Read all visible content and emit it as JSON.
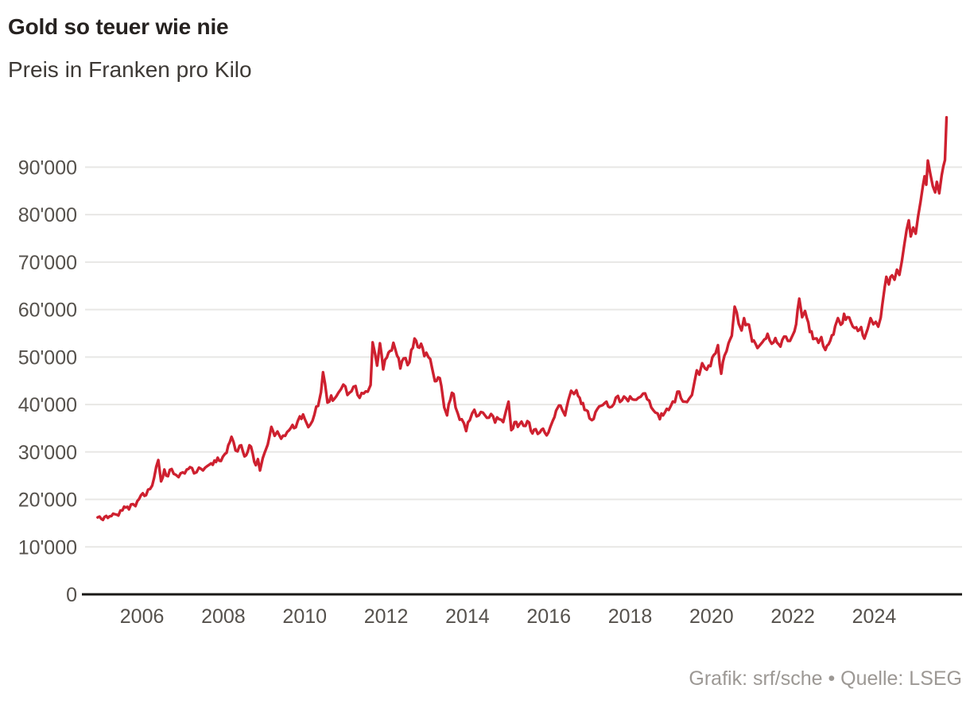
{
  "header": {
    "title": "Gold so teuer wie nie",
    "subtitle": "Preis in Franken pro Kilo"
  },
  "footer": {
    "text": "Grafik: srf/sche • Quelle: LSEG"
  },
  "colors": {
    "background": "#ffffff",
    "line": "#ce202f",
    "grid": "#e8e7e5",
    "axis_baseline": "#1a1816",
    "tick_label": "#55514c",
    "title": "#262220",
    "subtitle": "#3d3935",
    "footer": "#9c9894"
  },
  "chart_data": {
    "type": "line",
    "title": "Gold so teuer wie nie",
    "subtitle": "Preis in Franken pro Kilo",
    "source": "LSEG",
    "credit": "Grafik: srf/sche",
    "legend_position": "none",
    "grid": true,
    "xlim": [
      2004.91,
      2025.9
    ],
    "ylim": [
      0,
      100500
    ],
    "x_ticks": [
      {
        "value": 2006,
        "label": "2006"
      },
      {
        "value": 2008,
        "label": "2008"
      },
      {
        "value": 2010,
        "label": "2010"
      },
      {
        "value": 2012,
        "label": "2012"
      },
      {
        "value": 2014,
        "label": "2014"
      },
      {
        "value": 2016,
        "label": "2016"
      },
      {
        "value": 2018,
        "label": "2018"
      },
      {
        "value": 2020,
        "label": "2020"
      },
      {
        "value": 2022,
        "label": "2022"
      },
      {
        "value": 2024,
        "label": "2024"
      }
    ],
    "y_ticks": [
      {
        "value": 0,
        "label": "0"
      },
      {
        "value": 10000,
        "label": "10'000"
      },
      {
        "value": 20000,
        "label": "20'000"
      },
      {
        "value": 30000,
        "label": "30'000"
      },
      {
        "value": 40000,
        "label": "40'000"
      },
      {
        "value": 50000,
        "label": "50'000"
      },
      {
        "value": 60000,
        "label": "60'000"
      },
      {
        "value": 70000,
        "label": "70'000"
      },
      {
        "value": 80000,
        "label": "80'000"
      },
      {
        "value": 90000,
        "label": "90'000"
      }
    ],
    "series": [
      {
        "name": "Preis in Franken pro Kilo",
        "color": "#ce202f",
        "points": [
          [
            2004.91,
            16200
          ],
          [
            2005.0,
            15900
          ],
          [
            2005.08,
            16300
          ],
          [
            2005.16,
            16100
          ],
          [
            2005.25,
            16500
          ],
          [
            2005.33,
            16900
          ],
          [
            2005.42,
            16600
          ],
          [
            2005.52,
            17700
          ],
          [
            2005.6,
            18300
          ],
          [
            2005.68,
            17900
          ],
          [
            2005.78,
            19000
          ],
          [
            2005.84,
            18600
          ],
          [
            2005.93,
            20100
          ],
          [
            2006.02,
            21300
          ],
          [
            2006.1,
            20900
          ],
          [
            2006.2,
            22200
          ],
          [
            2006.3,
            24600
          ],
          [
            2006.4,
            28300
          ],
          [
            2006.47,
            23800
          ],
          [
            2006.55,
            26300
          ],
          [
            2006.64,
            24900
          ],
          [
            2006.73,
            26400
          ],
          [
            2006.83,
            25200
          ],
          [
            2006.9,
            24700
          ],
          [
            2007.0,
            25700
          ],
          [
            2007.1,
            26300
          ],
          [
            2007.18,
            26800
          ],
          [
            2007.28,
            25500
          ],
          [
            2007.4,
            26700
          ],
          [
            2007.5,
            26100
          ],
          [
            2007.6,
            27000
          ],
          [
            2007.7,
            27600
          ],
          [
            2007.78,
            28200
          ],
          [
            2007.86,
            28800
          ],
          [
            2007.94,
            28100
          ],
          [
            2008.04,
            29600
          ],
          [
            2008.12,
            31400
          ],
          [
            2008.2,
            33200
          ],
          [
            2008.3,
            30300
          ],
          [
            2008.4,
            31300
          ],
          [
            2008.48,
            30100
          ],
          [
            2008.56,
            29300
          ],
          [
            2008.64,
            31400
          ],
          [
            2008.72,
            29700
          ],
          [
            2008.8,
            27200
          ],
          [
            2008.85,
            28500
          ],
          [
            2008.9,
            26100
          ],
          [
            2008.97,
            28700
          ],
          [
            2009.05,
            30600
          ],
          [
            2009.13,
            33100
          ],
          [
            2009.18,
            35300
          ],
          [
            2009.26,
            33400
          ],
          [
            2009.33,
            34300
          ],
          [
            2009.42,
            32800
          ],
          [
            2009.52,
            33400
          ],
          [
            2009.62,
            34600
          ],
          [
            2009.7,
            35700
          ],
          [
            2009.78,
            35200
          ],
          [
            2009.88,
            37500
          ],
          [
            2009.96,
            37900
          ],
          [
            2010.04,
            36200
          ],
          [
            2010.14,
            35800
          ],
          [
            2010.24,
            37900
          ],
          [
            2010.33,
            39700
          ],
          [
            2010.4,
            42600
          ],
          [
            2010.45,
            46800
          ],
          [
            2010.5,
            44400
          ],
          [
            2010.56,
            40400
          ],
          [
            2010.65,
            41900
          ],
          [
            2010.73,
            41200
          ],
          [
            2010.83,
            42500
          ],
          [
            2010.95,
            44200
          ],
          [
            2011.05,
            42000
          ],
          [
            2011.15,
            42800
          ],
          [
            2011.25,
            43900
          ],
          [
            2011.35,
            41400
          ],
          [
            2011.45,
            42300
          ],
          [
            2011.55,
            42700
          ],
          [
            2011.62,
            44100
          ],
          [
            2011.67,
            53100
          ],
          [
            2011.73,
            50700
          ],
          [
            2011.78,
            48200
          ],
          [
            2011.85,
            52900
          ],
          [
            2011.93,
            47400
          ],
          [
            2012.02,
            49900
          ],
          [
            2012.1,
            51300
          ],
          [
            2012.18,
            53000
          ],
          [
            2012.27,
            50300
          ],
          [
            2012.35,
            47600
          ],
          [
            2012.43,
            49700
          ],
          [
            2012.53,
            48300
          ],
          [
            2012.62,
            51500
          ],
          [
            2012.7,
            53900
          ],
          [
            2012.78,
            52100
          ],
          [
            2012.86,
            52800
          ],
          [
            2012.94,
            50200
          ],
          [
            2013.04,
            50000
          ],
          [
            2013.13,
            47700
          ],
          [
            2013.2,
            44900
          ],
          [
            2013.28,
            45700
          ],
          [
            2013.36,
            43900
          ],
          [
            2013.43,
            39400
          ],
          [
            2013.5,
            37700
          ],
          [
            2013.58,
            41000
          ],
          [
            2013.66,
            42200
          ],
          [
            2013.76,
            38200
          ],
          [
            2013.86,
            36900
          ],
          [
            2013.97,
            34400
          ],
          [
            2014.06,
            36700
          ],
          [
            2014.17,
            38900
          ],
          [
            2014.28,
            37700
          ],
          [
            2014.38,
            38300
          ],
          [
            2014.48,
            37200
          ],
          [
            2014.58,
            38000
          ],
          [
            2014.68,
            36200
          ],
          [
            2014.78,
            36900
          ],
          [
            2014.88,
            36300
          ],
          [
            2014.95,
            38700
          ],
          [
            2015.01,
            40600
          ],
          [
            2015.08,
            34600
          ],
          [
            2015.16,
            36300
          ],
          [
            2015.24,
            35300
          ],
          [
            2015.33,
            36400
          ],
          [
            2015.43,
            35500
          ],
          [
            2015.52,
            36200
          ],
          [
            2015.6,
            33900
          ],
          [
            2015.68,
            34800
          ],
          [
            2015.78,
            34100
          ],
          [
            2015.86,
            34900
          ],
          [
            2015.95,
            33500
          ],
          [
            2016.04,
            35300
          ],
          [
            2016.1,
            36600
          ],
          [
            2016.18,
            38700
          ],
          [
            2016.25,
            39800
          ],
          [
            2016.33,
            38900
          ],
          [
            2016.4,
            37700
          ],
          [
            2016.48,
            40900
          ],
          [
            2016.55,
            42900
          ],
          [
            2016.62,
            42200
          ],
          [
            2016.68,
            43000
          ],
          [
            2016.76,
            41400
          ],
          [
            2016.84,
            40300
          ],
          [
            2016.92,
            38800
          ],
          [
            2017.0,
            37100
          ],
          [
            2017.06,
            36700
          ],
          [
            2017.15,
            38400
          ],
          [
            2017.24,
            39600
          ],
          [
            2017.33,
            39900
          ],
          [
            2017.42,
            40600
          ],
          [
            2017.5,
            39400
          ],
          [
            2017.6,
            40100
          ],
          [
            2017.7,
            41800
          ],
          [
            2017.8,
            40900
          ],
          [
            2017.9,
            41300
          ],
          [
            2018.0,
            41700
          ],
          [
            2018.1,
            41000
          ],
          [
            2018.2,
            41400
          ],
          [
            2018.32,
            42300
          ],
          [
            2018.42,
            41100
          ],
          [
            2018.52,
            39400
          ],
          [
            2018.62,
            38300
          ],
          [
            2018.73,
            36900
          ],
          [
            2018.81,
            37700
          ],
          [
            2018.9,
            39100
          ],
          [
            2019.0,
            39700
          ],
          [
            2019.1,
            40500
          ],
          [
            2019.16,
            42700
          ],
          [
            2019.25,
            41300
          ],
          [
            2019.35,
            40600
          ],
          [
            2019.45,
            41200
          ],
          [
            2019.52,
            42000
          ],
          [
            2019.58,
            44700
          ],
          [
            2019.64,
            47200
          ],
          [
            2019.7,
            46300
          ],
          [
            2019.77,
            48700
          ],
          [
            2019.84,
            47600
          ],
          [
            2019.93,
            48200
          ],
          [
            2020.02,
            49900
          ],
          [
            2020.1,
            50800
          ],
          [
            2020.16,
            52500
          ],
          [
            2020.2,
            48600
          ],
          [
            2020.24,
            46500
          ],
          [
            2020.32,
            50300
          ],
          [
            2020.42,
            52900
          ],
          [
            2020.5,
            54500
          ],
          [
            2020.57,
            60600
          ],
          [
            2020.62,
            59400
          ],
          [
            2020.67,
            57000
          ],
          [
            2020.74,
            55600
          ],
          [
            2020.8,
            58200
          ],
          [
            2020.88,
            56900
          ],
          [
            2020.96,
            55100
          ],
          [
            2021.04,
            53500
          ],
          [
            2021.13,
            51900
          ],
          [
            2021.2,
            52600
          ],
          [
            2021.3,
            53700
          ],
          [
            2021.38,
            54900
          ],
          [
            2021.48,
            52800
          ],
          [
            2021.57,
            54000
          ],
          [
            2021.65,
            52700
          ],
          [
            2021.74,
            53600
          ],
          [
            2021.83,
            54300
          ],
          [
            2021.93,
            53400
          ],
          [
            2022.0,
            54700
          ],
          [
            2022.08,
            56900
          ],
          [
            2022.16,
            62300
          ],
          [
            2022.23,
            58400
          ],
          [
            2022.3,
            59700
          ],
          [
            2022.38,
            57300
          ],
          [
            2022.46,
            55400
          ],
          [
            2022.54,
            53900
          ],
          [
            2022.63,
            53000
          ],
          [
            2022.7,
            54200
          ],
          [
            2022.8,
            51500
          ],
          [
            2022.88,
            52700
          ],
          [
            2022.96,
            54600
          ],
          [
            2023.04,
            56500
          ],
          [
            2023.11,
            58200
          ],
          [
            2023.18,
            56800
          ],
          [
            2023.26,
            59100
          ],
          [
            2023.34,
            58400
          ],
          [
            2023.43,
            57300
          ],
          [
            2023.52,
            56100
          ],
          [
            2023.6,
            55500
          ],
          [
            2023.68,
            56300
          ],
          [
            2023.76,
            53900
          ],
          [
            2023.84,
            55900
          ],
          [
            2023.91,
            58200
          ],
          [
            2023.98,
            56900
          ],
          [
            2024.04,
            57400
          ],
          [
            2024.1,
            56400
          ],
          [
            2024.16,
            58300
          ],
          [
            2024.2,
            61000
          ],
          [
            2024.26,
            64800
          ],
          [
            2024.3,
            66900
          ],
          [
            2024.36,
            65300
          ],
          [
            2024.44,
            67200
          ],
          [
            2024.5,
            66300
          ],
          [
            2024.56,
            68400
          ],
          [
            2024.62,
            67300
          ],
          [
            2024.68,
            70200
          ],
          [
            2024.74,
            73600
          ],
          [
            2024.8,
            76900
          ],
          [
            2024.85,
            78800
          ],
          [
            2024.9,
            75400
          ],
          [
            2024.96,
            77300
          ],
          [
            2025.02,
            76000
          ],
          [
            2025.08,
            79600
          ],
          [
            2025.14,
            82700
          ],
          [
            2025.2,
            86200
          ],
          [
            2025.24,
            88100
          ],
          [
            2025.28,
            86300
          ],
          [
            2025.32,
            91400
          ],
          [
            2025.38,
            88600
          ],
          [
            2025.44,
            86000
          ],
          [
            2025.5,
            84700
          ],
          [
            2025.54,
            86900
          ],
          [
            2025.6,
            84500
          ],
          [
            2025.66,
            88300
          ],
          [
            2025.7,
            90200
          ],
          [
            2025.74,
            91500
          ],
          [
            2025.78,
            100500
          ]
        ]
      }
    ]
  }
}
